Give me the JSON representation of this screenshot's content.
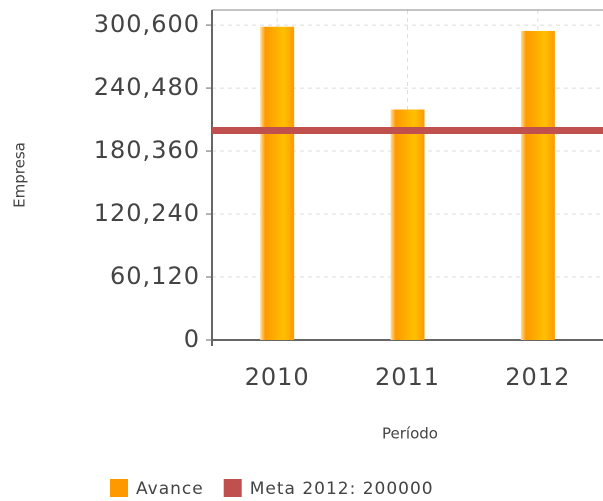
{
  "chart_data": {
    "type": "bar",
    "y_label": "Empresa",
    "x_label": "Período",
    "categories": [
      "2010",
      "2011",
      "2012"
    ],
    "series": [
      {
        "name": "Avance",
        "color": "#ff9900",
        "values": [
          299000,
          220000,
          295000
        ]
      }
    ],
    "lines": [
      {
        "name": "Meta 2012: 200000",
        "color": "#c0504d",
        "value": 200000
      }
    ],
    "ylim": [
      0,
      315000
    ],
    "yticks": [
      0,
      {
        "value": 60120,
        "label": "60,120"
      },
      {
        "value": 120240,
        "label": "120,240"
      },
      {
        "value": 180360,
        "label": "180,360"
      },
      {
        "value": 240480,
        "label": "240,480"
      },
      {
        "value": 300600,
        "label": "300,600"
      }
    ],
    "grid": true
  }
}
